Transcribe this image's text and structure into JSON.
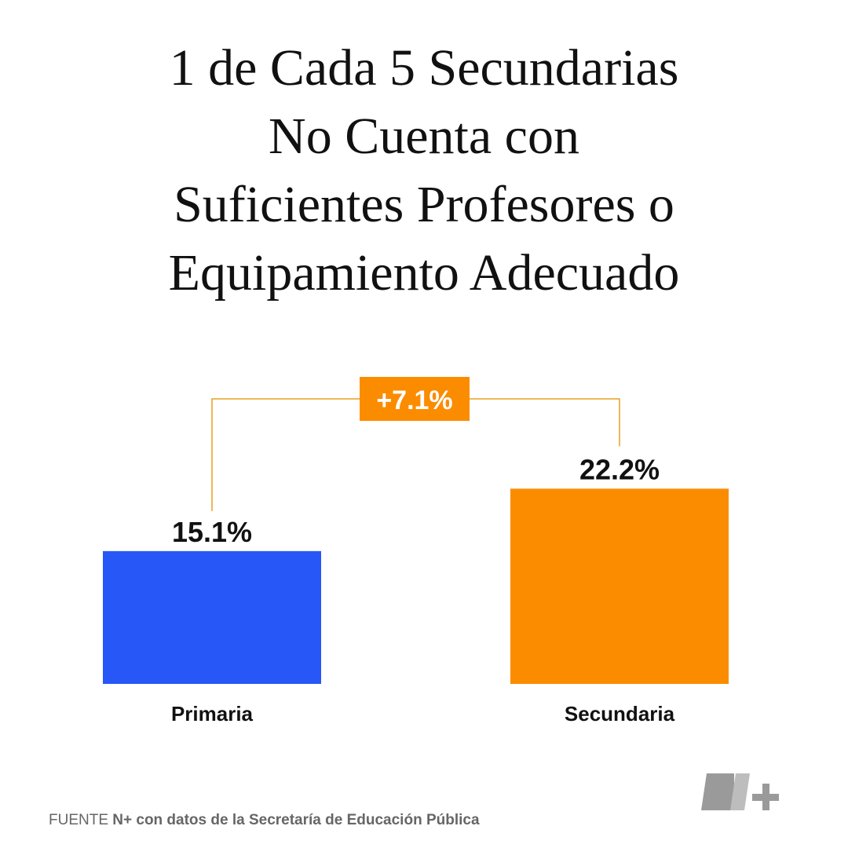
{
  "chart_data": {
    "type": "bar",
    "title": [
      "1 de Cada 5 Secundarias",
      "No Cuenta con",
      "Suficientes Profesores o",
      "Equipamiento Adecuado"
    ],
    "categories": [
      "Primaria",
      "Secundaria"
    ],
    "values": [
      15.1,
      22.2
    ],
    "value_labels": [
      "15.1%",
      "22.2%"
    ],
    "colors": [
      "#2857f7",
      "#fb8c00"
    ],
    "annotation": "+7.1%",
    "source": {
      "prefix": "FUENTE",
      "text": "N+ con datos de la Secretaría de Educación Pública"
    }
  }
}
